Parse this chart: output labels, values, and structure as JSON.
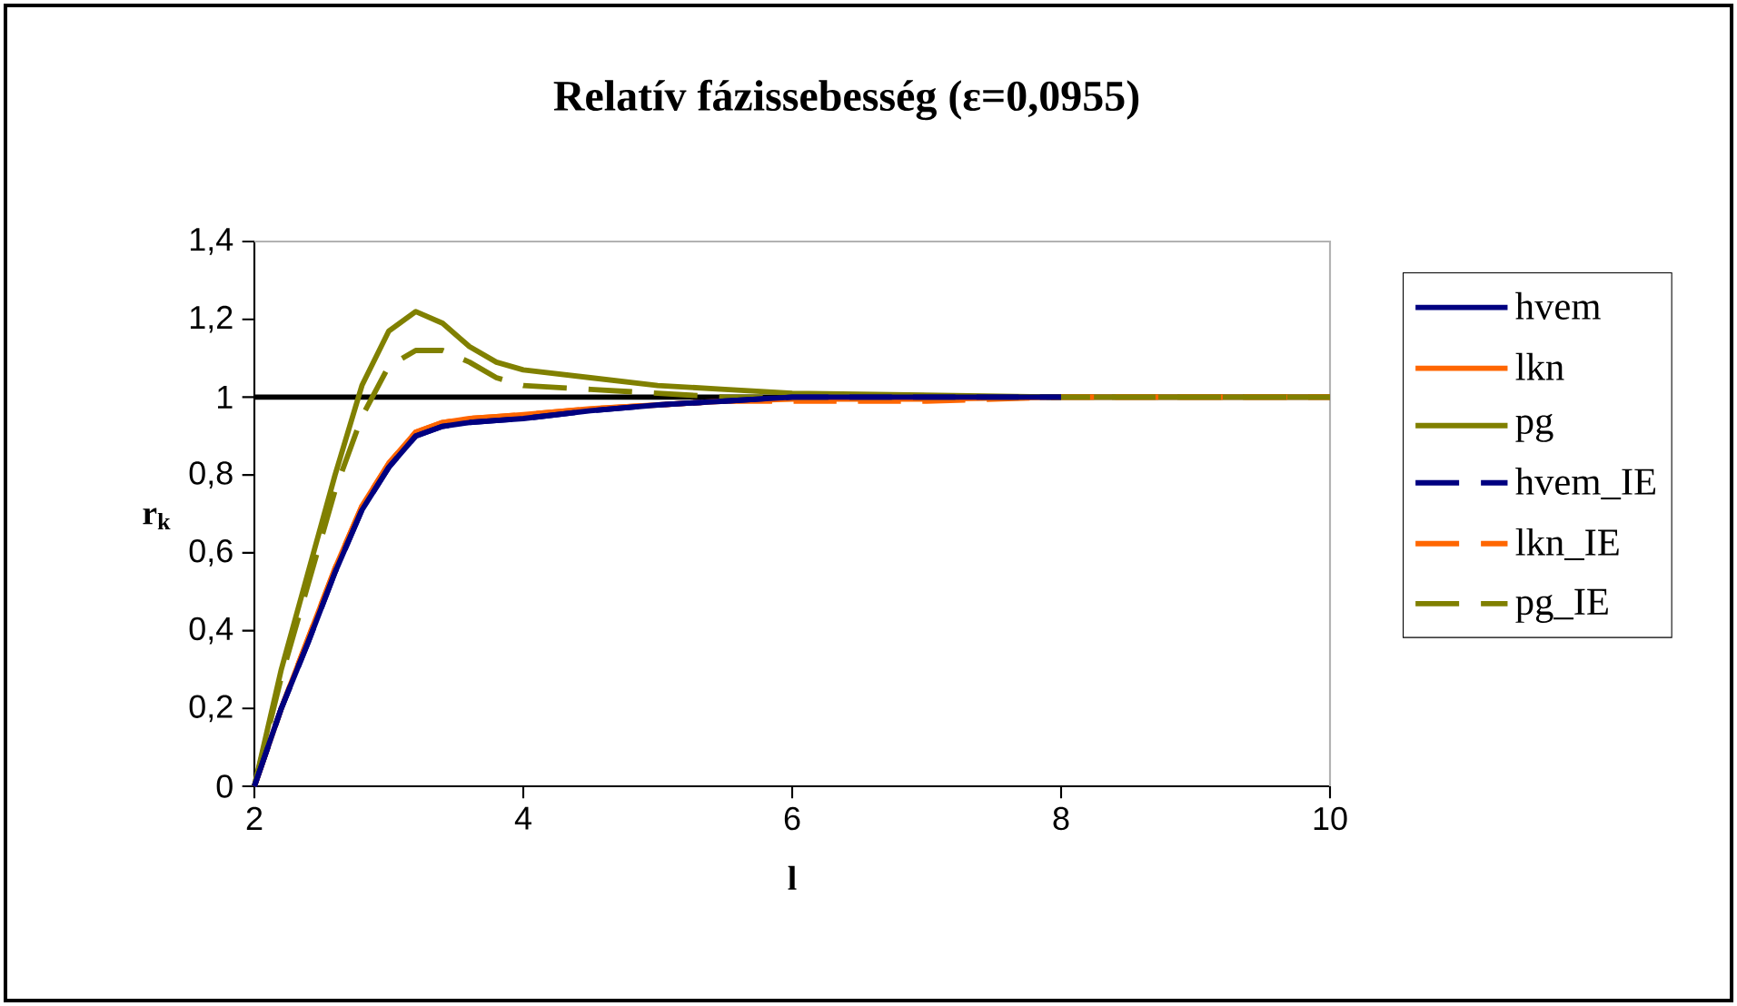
{
  "chart_data": {
    "type": "line",
    "title": "Relatív fázissebesség (ε=0,0955)",
    "xlabel": "l",
    "ylabel": "r$_{k}$",
    "x": [
      2,
      2.2,
      2.4,
      2.6,
      2.8,
      3,
      3.2,
      3.4,
      3.6,
      3.8,
      4,
      4.5,
      5,
      5.5,
      6,
      7,
      8,
      9,
      10
    ],
    "series": [
      {
        "name": "hvem",
        "color": "#000080",
        "line_style": "solid",
        "values": [
          0,
          0.2,
          0.37,
          0.55,
          0.71,
          0.82,
          0.9,
          0.925,
          0.935,
          0.94,
          0.945,
          0.965,
          0.98,
          0.99,
          1,
          1,
          1,
          null,
          null
        ]
      },
      {
        "name": "lkn",
        "color": "#ff6600",
        "line_style": "solid",
        "values": [
          0,
          0.2,
          0.38,
          0.56,
          0.72,
          0.83,
          0.91,
          0.935,
          0.945,
          0.95,
          0.955,
          0.97,
          0.98,
          0.99,
          0.995,
          0.995,
          1,
          1,
          1
        ]
      },
      {
        "name": "pg",
        "color": "#808000",
        "line_style": "solid",
        "values": [
          0,
          0.3,
          0.55,
          0.8,
          1.03,
          1.17,
          1.22,
          1.19,
          1.13,
          1.09,
          1.07,
          1.05,
          1.03,
          1.02,
          1.01,
          1.005,
          1,
          1,
          1
        ]
      },
      {
        "name": "hvem_IE",
        "color": "#000080",
        "line_style": "dashed",
        "values": [
          0,
          0.2,
          0.37,
          0.55,
          0.71,
          0.82,
          0.9,
          0.925,
          0.935,
          0.94,
          0.945,
          0.965,
          0.98,
          0.99,
          1,
          1,
          1,
          null,
          null
        ]
      },
      {
        "name": "lkn_IE",
        "color": "#ff6600",
        "line_style": "dashed",
        "values": [
          0,
          0.2,
          0.38,
          0.56,
          0.72,
          0.83,
          0.91,
          0.935,
          0.945,
          0.95,
          0.955,
          0.97,
          0.98,
          0.99,
          0.99,
          0.99,
          1,
          1,
          1
        ]
      },
      {
        "name": "pg_IE",
        "color": "#808000",
        "line_style": "dashed",
        "values": [
          0,
          0.28,
          0.52,
          0.76,
          0.95,
          1.08,
          1.12,
          1.12,
          1.09,
          1.05,
          1.03,
          1.02,
          1.01,
          1.0,
          1.0,
          1,
          1,
          1,
          1
        ]
      }
    ],
    "ref_lines": [
      {
        "axis": "y",
        "value": 1,
        "color": "#000000"
      }
    ],
    "xlim": [
      2,
      10
    ],
    "xticks": [
      2,
      4,
      6,
      8,
      10
    ],
    "ylim": [
      0,
      1.4
    ],
    "yticks": [
      {
        "value": 0,
        "label": "0"
      },
      {
        "value": 0.2,
        "label": "0,2"
      },
      {
        "value": 0.4,
        "label": "0,4"
      },
      {
        "value": 0.6,
        "label": "0,6"
      },
      {
        "value": 0.8,
        "label": "0,8"
      },
      {
        "value": 1,
        "label": "1"
      },
      {
        "value": 1.2,
        "label": "1,2"
      },
      {
        "value": 1.4,
        "label": "1,4"
      }
    ],
    "grid": false,
    "legend": "right",
    "marker": "none"
  }
}
